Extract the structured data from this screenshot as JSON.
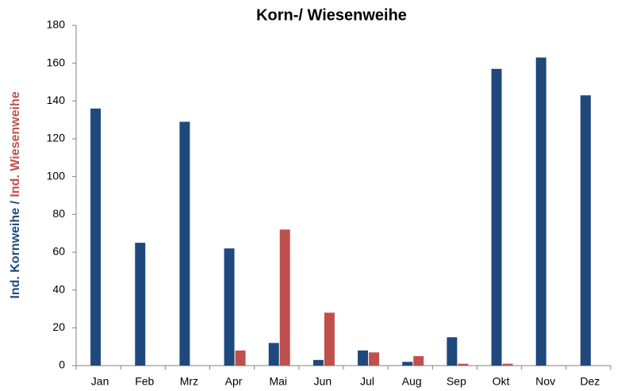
{
  "chart_data": {
    "type": "bar",
    "title": "Korn-/ Wiesenweihe",
    "ylabel_separator": "/",
    "categories": [
      "Jan",
      "Feb",
      "Mrz",
      "Apr",
      "Mai",
      "Jun",
      "Jul",
      "Aug",
      "Sep",
      "Okt",
      "Nov",
      "Dez"
    ],
    "series": [
      {
        "name": "Ind. Kornweihe",
        "color": "#1f497d",
        "values": [
          136,
          65,
          129,
          62,
          12,
          3,
          8,
          2,
          15,
          157,
          163,
          143
        ]
      },
      {
        "name": "Ind. Wiesenweihe",
        "color": "#c0504d",
        "values": [
          null,
          null,
          null,
          8,
          72,
          28,
          7,
          5,
          1,
          1,
          null,
          null
        ]
      }
    ],
    "ylim": [
      0,
      180
    ],
    "yticks": [
      0,
      20,
      40,
      60,
      80,
      100,
      120,
      140,
      160,
      180
    ],
    "grid": false
  }
}
